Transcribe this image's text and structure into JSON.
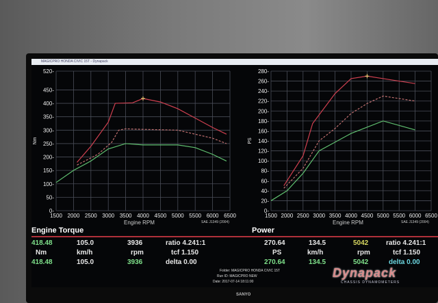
{
  "window": {
    "title": "MAGICPRO HONDA CIVIC 15T - Dynapack"
  },
  "brand": {
    "logo": "Dynapack",
    "tagline": "CHASSIS DYNAMOMETERS",
    "monitor": "SANYO"
  },
  "chart_data": [
    {
      "type": "line",
      "title": "Engine Torque",
      "xlabel": "Engine RPM",
      "ylabel": "Nm",
      "note": "SAE J1349 (2004)",
      "xticks": [
        1500,
        2000,
        2500,
        3000,
        3500,
        4000,
        4500,
        5000,
        5500,
        6000,
        6500
      ],
      "yticks": [
        0,
        50,
        100,
        150,
        200,
        250,
        300,
        350,
        400,
        450,
        520
      ],
      "xlim": [
        1500,
        6500
      ],
      "ylim": [
        0,
        520
      ],
      "grid": true,
      "series": [
        {
          "color": "#d04050",
          "style": "solid",
          "points": [
            [
              2100,
              180
            ],
            [
              2500,
              240
            ],
            [
              3000,
              330
            ],
            [
              3200,
              400
            ],
            [
              3700,
              402
            ],
            [
              4000,
              418
            ],
            [
              4500,
              405
            ],
            [
              5000,
              380
            ],
            [
              5500,
              345
            ],
            [
              6000,
              310
            ],
            [
              6400,
              285
            ]
          ]
        },
        {
          "color": "#c07070",
          "style": "dashed",
          "points": [
            [
              2100,
              170
            ],
            [
              2700,
              210
            ],
            [
              3100,
              255
            ],
            [
              3300,
              300
            ],
            [
              3500,
              305
            ],
            [
              4000,
              303
            ],
            [
              5000,
              300
            ],
            [
              6000,
              270
            ],
            [
              6400,
              250
            ]
          ]
        },
        {
          "color": "#60c070",
          "style": "solid",
          "points": [
            [
              1500,
              105
            ],
            [
              2000,
              150
            ],
            [
              2500,
              185
            ],
            [
              3000,
              230
            ],
            [
              3500,
              250
            ],
            [
              4000,
              245
            ],
            [
              5000,
              245
            ],
            [
              5500,
              235
            ],
            [
              6000,
              210
            ],
            [
              6400,
              185
            ]
          ]
        }
      ]
    },
    {
      "type": "line",
      "title": "Power",
      "xlabel": "Engine RPM",
      "ylabel": "PS",
      "note": "SAE J1349 (2004)",
      "xticks": [
        1500,
        2000,
        2500,
        3000,
        3500,
        4000,
        4500,
        5000,
        5500,
        6000,
        6500
      ],
      "yticks": [
        0,
        20,
        40,
        60,
        80,
        100,
        120,
        140,
        160,
        180,
        200,
        220,
        240,
        260,
        280
      ],
      "xlim": [
        1500,
        6500
      ],
      "ylim": [
        0,
        280
      ],
      "grid": true,
      "series": [
        {
          "color": "#d04050",
          "style": "solid",
          "points": [
            [
              1900,
              50
            ],
            [
              2500,
              110
            ],
            [
              2800,
              175
            ],
            [
              3500,
              235
            ],
            [
              4000,
              265
            ],
            [
              4500,
              270
            ],
            [
              5000,
              265
            ],
            [
              6000,
              255
            ]
          ]
        },
        {
          "color": "#c07070",
          "style": "dashed",
          "points": [
            [
              1900,
              45
            ],
            [
              2500,
              85
            ],
            [
              3000,
              140
            ],
            [
              3500,
              165
            ],
            [
              4000,
              195
            ],
            [
              4500,
              215
            ],
            [
              5000,
              230
            ],
            [
              6000,
              220
            ]
          ]
        },
        {
          "color": "#60c070",
          "style": "solid",
          "points": [
            [
              1500,
              20
            ],
            [
              2000,
              40
            ],
            [
              2500,
              75
            ],
            [
              3000,
              120
            ],
            [
              4000,
              155
            ],
            [
              5000,
              180
            ],
            [
              6000,
              162
            ]
          ]
        }
      ]
    }
  ],
  "readout": {
    "torque": {
      "v1": "418.48",
      "unit": "Nm",
      "v2": "418.48",
      "speed1": "105.0",
      "speed_unit": "km/h",
      "speed2": "105.0",
      "rpm1": "3936",
      "rpm_unit": "rpm",
      "rpm2": "3936",
      "ratio": "ratio 4.241:1",
      "tcf": "tcf 1.150",
      "delta": "delta 0.00"
    },
    "power": {
      "v1": "270.64",
      "unit": "PS",
      "v2": "270.64",
      "speed1": "134.5",
      "speed_unit": "km/h",
      "speed2": "134.5",
      "rpm1": "5042",
      "rpm_unit": "rpm",
      "rpm2": "5042",
      "ratio": "ratio 4.241:1",
      "tcf": "tcf 1.150",
      "delta": "delta 0.00"
    }
  },
  "info": {
    "folder": "Folder:  MAGICPRO HONDA CIVIC 15T",
    "run": "Run ID:  MAGICPRO NEW",
    "date": "Date:  2017-07-14 18:11:00"
  }
}
